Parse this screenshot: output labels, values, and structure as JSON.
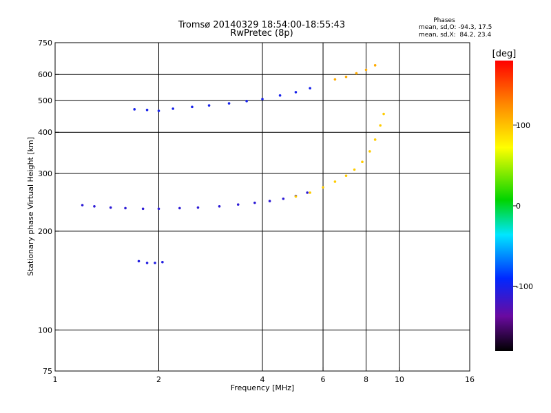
{
  "chart_data": {
    "type": "scatter",
    "title": "Tromsø 20140329 18:54:00-18:55:43",
    "subtitle": "RwPretec (8p)",
    "xlabel": "Frequency [MHz]",
    "ylabel": "Stationary phase Virtual Height [km]",
    "x_scale": "log",
    "y_scale": "log",
    "xlim": [
      1,
      16
    ],
    "ylim": [
      75,
      750
    ],
    "x_ticks": [
      "1",
      "2",
      "4",
      "6",
      "8",
      "10",
      "16"
    ],
    "y_ticks": [
      "75",
      "100",
      "200",
      "300",
      "400",
      "500",
      "600",
      "750"
    ],
    "x_gridlines": [
      2,
      4,
      6,
      8,
      10
    ],
    "y_gridlines": [
      100,
      200,
      300,
      400,
      500,
      600
    ],
    "grid": true,
    "stats": {
      "title": "Phases",
      "line1": "mean, sd,O: -94.3, 17.5",
      "line2": "mean, sd,X:  84.2, 23.4"
    },
    "colorbar": {
      "label": "[deg]",
      "range": [
        -180,
        180
      ],
      "ticks": [
        "100",
        "0",
        "-100"
      ],
      "tick_values": [
        100,
        0,
        -100
      ],
      "colormap": "rainbow"
    },
    "traces": [
      {
        "name": "",
        "phase": -100,
        "points": [
          [
            1.7,
            470
          ],
          [
            1.85,
            468
          ],
          [
            2.0,
            465
          ],
          [
            2.2,
            472
          ],
          [
            2.5,
            478
          ],
          [
            2.8,
            483
          ],
          [
            3.2,
            490
          ],
          [
            3.6,
            498
          ],
          [
            4.0,
            505
          ],
          [
            4.5,
            518
          ],
          [
            5.0,
            530
          ],
          [
            5.5,
            545
          ]
        ]
      },
      {
        "name": "",
        "phase": -110,
        "points": [
          [
            1.2,
            240
          ],
          [
            1.3,
            238
          ],
          [
            1.45,
            236
          ],
          [
            1.6,
            235
          ],
          [
            1.8,
            234
          ],
          [
            2.0,
            234
          ],
          [
            2.3,
            235
          ],
          [
            2.6,
            236
          ],
          [
            3.0,
            238
          ],
          [
            3.4,
            241
          ],
          [
            3.8,
            244
          ],
          [
            4.2,
            247
          ],
          [
            4.6,
            251
          ],
          [
            5.0,
            256
          ],
          [
            5.4,
            262
          ]
        ]
      },
      {
        "name": "",
        "phase": 95,
        "points": [
          [
            5.0,
            255
          ],
          [
            5.5,
            262
          ],
          [
            6.0,
            272
          ],
          [
            6.5,
            283
          ],
          [
            7.0,
            295
          ],
          [
            7.4,
            308
          ],
          [
            7.8,
            325
          ],
          [
            8.2,
            350
          ],
          [
            8.5,
            380
          ],
          [
            8.8,
            420
          ],
          [
            9.0,
            455
          ]
        ]
      },
      {
        "name": "",
        "phase": -105,
        "points": [
          [
            1.75,
            162
          ],
          [
            1.85,
            160
          ],
          [
            1.95,
            160
          ],
          [
            2.05,
            161
          ]
        ]
      },
      {
        "name": "",
        "phase": 110,
        "points": [
          [
            6.5,
            580
          ],
          [
            7.0,
            590
          ],
          [
            7.5,
            605
          ],
          [
            8.0,
            620
          ],
          [
            8.5,
            640
          ]
        ]
      }
    ]
  }
}
